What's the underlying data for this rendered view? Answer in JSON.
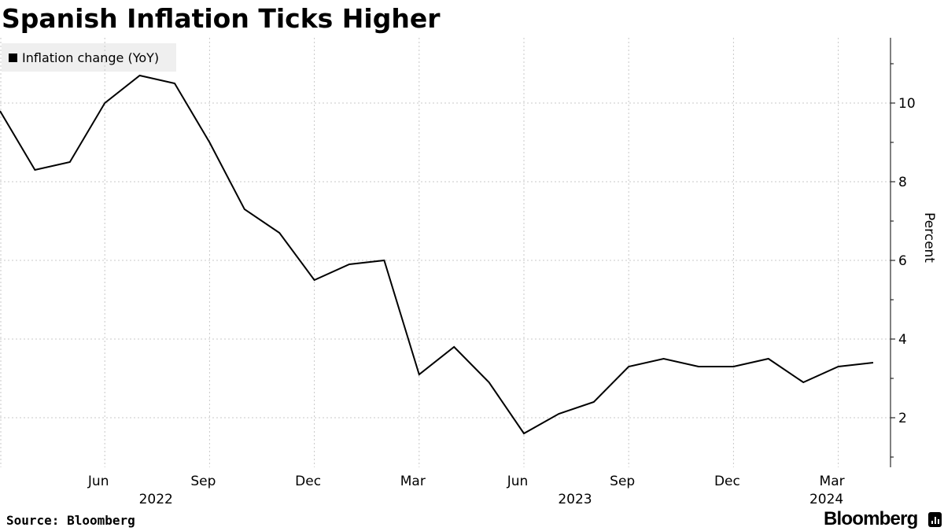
{
  "chart_data": {
    "type": "line",
    "title": "Spanish Inflation Ticks Higher",
    "ylabel": "Percent",
    "ylim": [
      0.8,
      11.6
    ],
    "yticks": [
      2,
      4,
      6,
      8,
      10
    ],
    "grid": true,
    "legend_position": "top-left",
    "x_month_labels": [
      "Jun",
      "Sep",
      "Dec",
      "Mar",
      "Jun",
      "Sep",
      "Dec",
      "Mar"
    ],
    "x_year_labels": [
      "2022",
      "2023",
      "2024"
    ],
    "series": [
      {
        "name": "Inflation change (YoY)",
        "color": "#000000",
        "x": [
          "2022-03",
          "2022-04",
          "2022-05",
          "2022-06",
          "2022-07",
          "2022-08",
          "2022-09",
          "2022-10",
          "2022-11",
          "2022-12",
          "2023-01",
          "2023-02",
          "2023-03",
          "2023-04",
          "2023-05",
          "2023-06",
          "2023-07",
          "2023-08",
          "2023-09",
          "2023-10",
          "2023-11",
          "2023-12",
          "2024-01",
          "2024-02",
          "2024-03",
          "2024-04"
        ],
        "values": [
          9.8,
          8.3,
          8.5,
          10.0,
          10.7,
          10.5,
          9.0,
          7.3,
          6.7,
          5.5,
          5.9,
          6.0,
          3.1,
          3.8,
          2.9,
          1.6,
          2.1,
          2.4,
          3.3,
          3.5,
          3.3,
          3.3,
          3.5,
          2.9,
          3.3,
          3.4
        ]
      }
    ]
  },
  "footer": {
    "source": "Source: Bloomberg",
    "brand": "Bloomberg"
  },
  "colors": {
    "line": "#000000",
    "grid": "#c8c8c8",
    "legend_bg": "#efefef"
  }
}
